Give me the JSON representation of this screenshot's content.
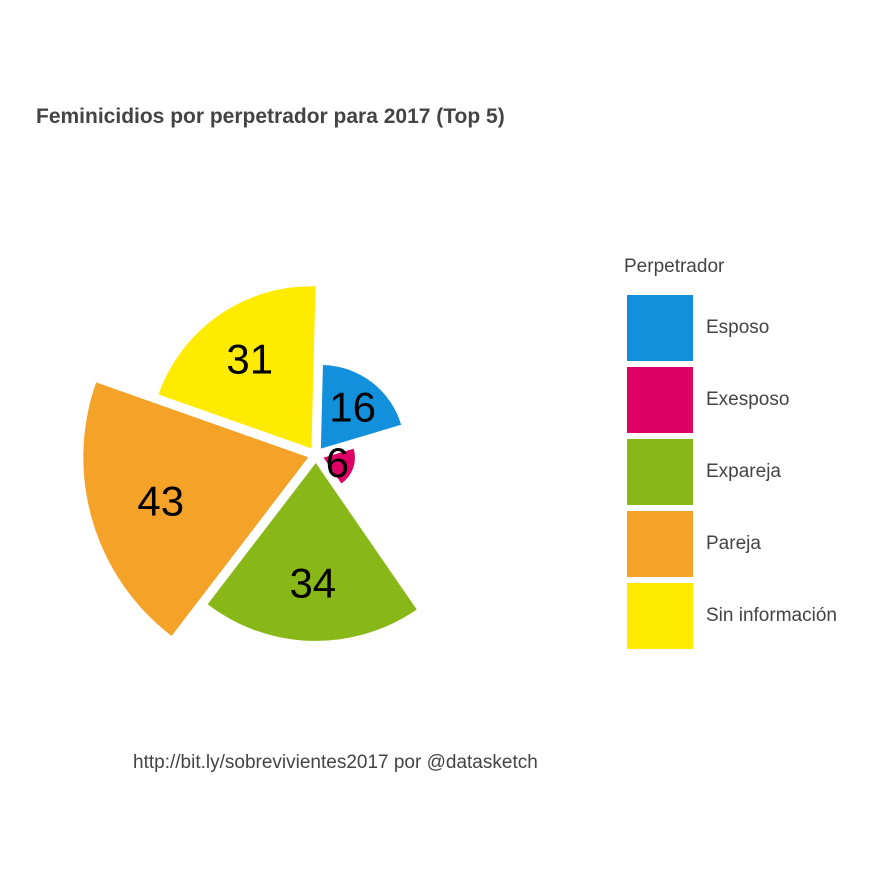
{
  "chart_data": {
    "type": "pie",
    "title": "Feminicidios por perpetrador para 2017 (Top 5)",
    "legend_title": "Perpetrador",
    "legend_position": "right",
    "caption": "http://bit.ly/sobrevivientes2017 por @datasketch",
    "categories": [
      "Esposo",
      "Exesposo",
      "Expareja",
      "Pareja",
      "Sin información"
    ],
    "values": [
      16,
      6,
      34,
      43,
      31
    ],
    "colors": [
      "#1290DB",
      "#DE0065",
      "#88B817",
      "#F5A229",
      "#FEEB00"
    ],
    "grid": false
  }
}
